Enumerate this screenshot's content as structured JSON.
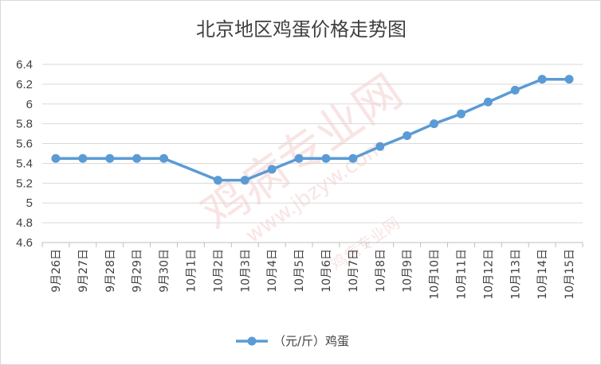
{
  "chart_data": {
    "type": "line",
    "title": "北京地区鸡蛋价格走势图",
    "xlabel": "",
    "ylabel": "",
    "categories": [
      "9月26日",
      "9月27日",
      "9月28日",
      "9月29日",
      "9月30日",
      "10月1日",
      "10月2日",
      "10月3日",
      "10月4日",
      "10月5日",
      "10月6日",
      "10月7日",
      "10月8日",
      "10月9日",
      "10月10日",
      "10月11日",
      "10月12日",
      "10月13日",
      "10月14日",
      "10月15日"
    ],
    "series": [
      {
        "name": "（元/斤）鸡蛋",
        "values": [
          5.45,
          5.45,
          5.45,
          5.45,
          5.45,
          null,
          5.23,
          5.23,
          5.34,
          5.45,
          5.45,
          5.45,
          5.57,
          5.68,
          5.8,
          5.9,
          6.02,
          6.14,
          6.25,
          6.25
        ]
      }
    ],
    "ylim": [
      4.6,
      6.4
    ],
    "yticks": [
      "4.6",
      "4.8",
      "5",
      "5.2",
      "5.4",
      "5.6",
      "5.8",
      "6",
      "6.2",
      "6.4"
    ],
    "grid": true,
    "legend_position": "bottom",
    "colors": {
      "line": "#5b9bd5",
      "grid": "#d9d9d9",
      "axis": "#bfbfbf",
      "text": "#404040"
    }
  },
  "watermark": {
    "main": "鸡病专业网",
    "url": "www.jbzyw.com",
    "sub": "鸡病专业网"
  }
}
